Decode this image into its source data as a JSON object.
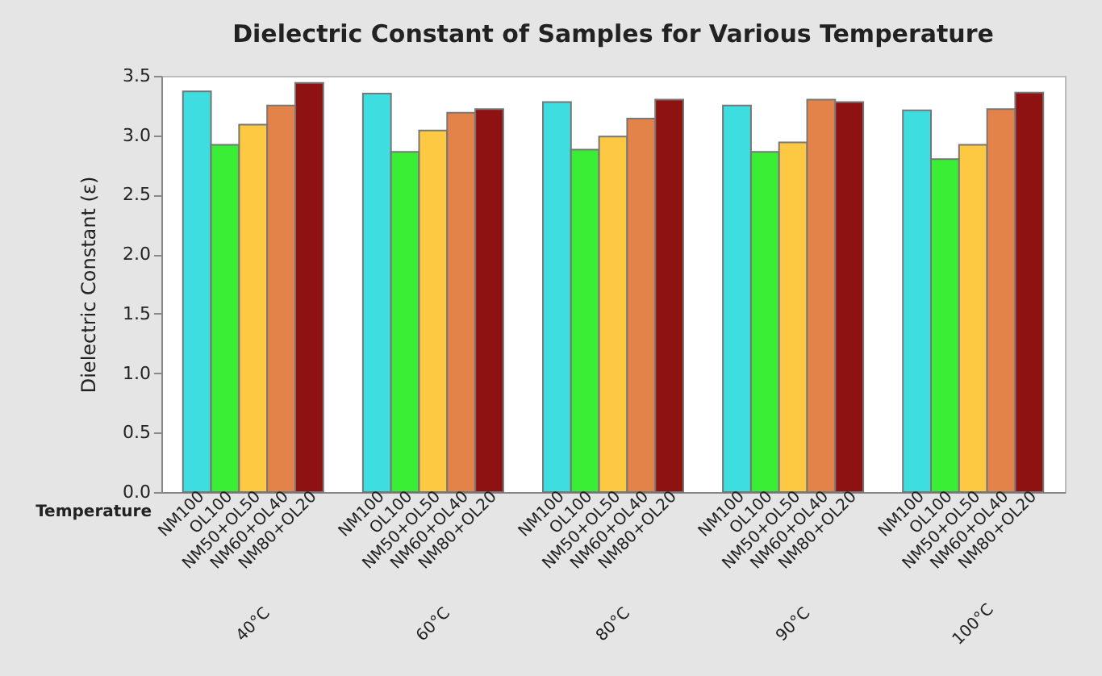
{
  "chart_data": {
    "type": "bar",
    "title": "Dielectric Constant of Samples for Various Temperature",
    "xlabel": "Temperature",
    "ylabel": "Dielectric Constant (ε)",
    "categories": [
      "40°C",
      "60°C",
      "80°C",
      "90°C",
      "100°C"
    ],
    "series": [
      {
        "name": "NM100",
        "color": "#3ddde0",
        "values": [
          3.37,
          3.35,
          3.28,
          3.25,
          3.21
        ]
      },
      {
        "name": "OL100",
        "color": "#3aee35",
        "values": [
          2.92,
          2.86,
          2.88,
          2.86,
          2.8
        ]
      },
      {
        "name": "NM50+OL50",
        "color": "#fdc943",
        "values": [
          3.09,
          3.04,
          2.99,
          2.94,
          2.92
        ]
      },
      {
        "name": "NM60+OL40",
        "color": "#e3834a",
        "values": [
          3.25,
          3.19,
          3.14,
          3.3,
          3.22
        ]
      },
      {
        "name": "NM80+OL20",
        "color": "#8e1212",
        "values": [
          3.44,
          3.22,
          3.3,
          3.28,
          3.36
        ]
      }
    ],
    "ylim": [
      0,
      3.5
    ],
    "yticks": [
      {
        "value": 0,
        "label": "0.0"
      },
      0.5,
      {
        "value": 1,
        "label": "1.0"
      },
      1.5,
      {
        "value": 2,
        "label": "2.0"
      },
      2.5,
      {
        "value": 3,
        "label": "3.0"
      },
      3.5
    ],
    "grid": false,
    "legend": false
  }
}
